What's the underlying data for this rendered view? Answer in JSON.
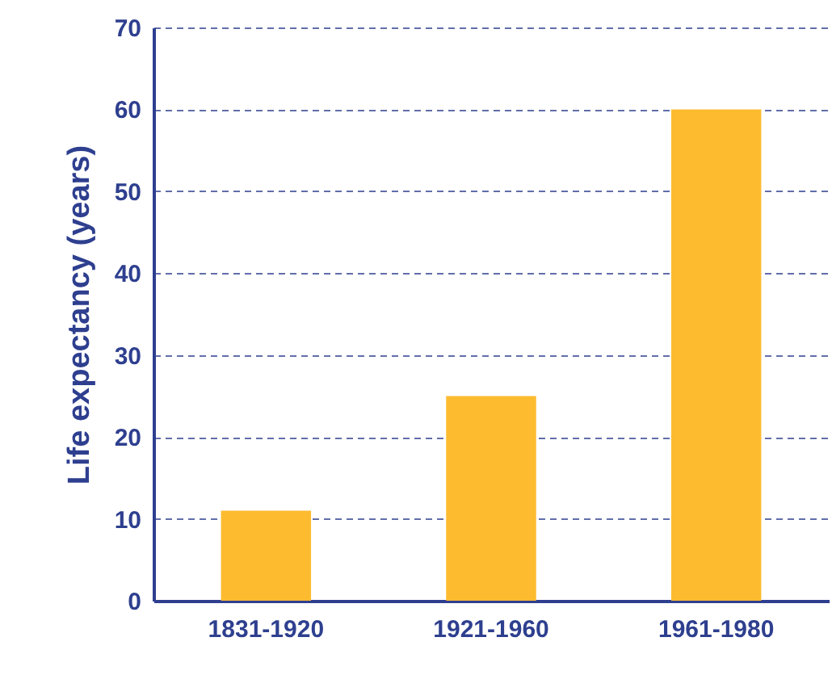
{
  "chart_data": {
    "type": "bar",
    "ylabel": "Life expectancy (years)",
    "categories": [
      "1831-1920",
      "1921-1960",
      "1961-1980"
    ],
    "values": [
      11,
      25,
      60
    ],
    "color": "#fdbb30",
    "ylim": [
      0,
      70
    ],
    "yticks": [
      0,
      10,
      20,
      30,
      40,
      50,
      60,
      70
    ],
    "grid": "y"
  }
}
